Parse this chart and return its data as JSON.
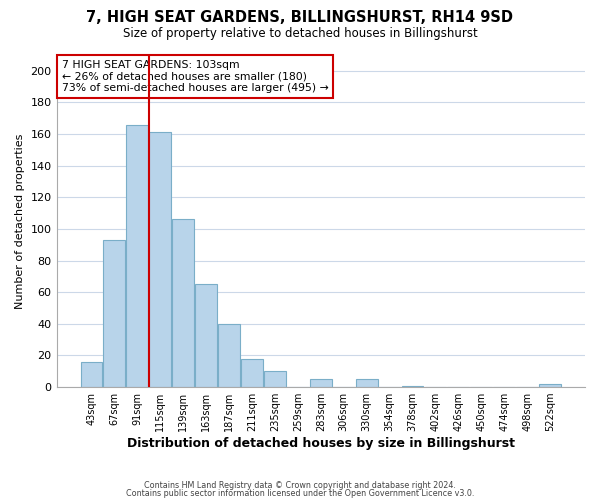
{
  "title": "7, HIGH SEAT GARDENS, BILLINGSHURST, RH14 9SD",
  "subtitle": "Size of property relative to detached houses in Billingshurst",
  "xlabel": "Distribution of detached houses by size in Billingshurst",
  "ylabel": "Number of detached properties",
  "bar_labels": [
    "43sqm",
    "67sqm",
    "91sqm",
    "115sqm",
    "139sqm",
    "163sqm",
    "187sqm",
    "211sqm",
    "235sqm",
    "259sqm",
    "283sqm",
    "306sqm",
    "330sqm",
    "354sqm",
    "378sqm",
    "402sqm",
    "426sqm",
    "450sqm",
    "474sqm",
    "498sqm",
    "522sqm"
  ],
  "bar_values": [
    16,
    93,
    166,
    161,
    106,
    65,
    40,
    18,
    10,
    0,
    5,
    0,
    5,
    0,
    1,
    0,
    0,
    0,
    0,
    0,
    2
  ],
  "bar_color": "#b8d4ea",
  "bar_edge_color": "#7aaec8",
  "reference_line_color": "#cc0000",
  "annotation_title": "7 HIGH SEAT GARDENS: 103sqm",
  "annotation_line1": "← 26% of detached houses are smaller (180)",
  "annotation_line2": "73% of semi-detached houses are larger (495) →",
  "annotation_box_color": "#ffffff",
  "annotation_box_edge_color": "#cc0000",
  "ylim": [
    0,
    210
  ],
  "yticks": [
    0,
    20,
    40,
    60,
    80,
    100,
    120,
    140,
    160,
    180,
    200
  ],
  "footer_line1": "Contains HM Land Registry data © Crown copyright and database right 2024.",
  "footer_line2": "Contains public sector information licensed under the Open Government Licence v3.0.",
  "background_color": "#ffffff",
  "grid_color": "#ccd8e8"
}
